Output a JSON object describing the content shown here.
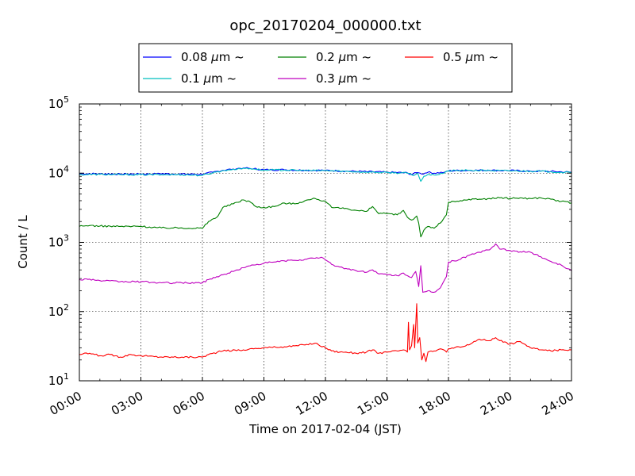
{
  "chart_data": {
    "type": "line",
    "title": "opc_20170204_000000.txt",
    "xlabel": "Time on 2017-02-04 (JST)",
    "ylabel": "Count / L",
    "y_scale": "log",
    "ylim": [
      10,
      100000
    ],
    "xlim": [
      0,
      24
    ],
    "x_unit": "hours",
    "x_tick_labels": [
      "00:00",
      "03:00",
      "06:00",
      "09:00",
      "12:00",
      "15:00",
      "18:00",
      "21:00",
      "24:00"
    ],
    "y_tick_labels": [
      {
        "base": "10",
        "exp": "1"
      },
      {
        "base": "10",
        "exp": "2"
      },
      {
        "base": "10",
        "exp": "3"
      },
      {
        "base": "10",
        "exp": "4"
      },
      {
        "base": "10",
        "exp": "5"
      }
    ],
    "grid": true,
    "legend": {
      "placement": "top",
      "ncol": 3,
      "unit": "μm",
      "suffix": "~"
    },
    "series": [
      {
        "name": "0.08",
        "color": "#0000ff",
        "points": [
          [
            0,
            9800
          ],
          [
            1,
            9800
          ],
          [
            2,
            9700
          ],
          [
            3,
            9700
          ],
          [
            4,
            9800
          ],
          [
            5,
            9700
          ],
          [
            6,
            9600
          ],
          [
            6.5,
            10300
          ],
          [
            7,
            11000
          ],
          [
            7.5,
            11500
          ],
          [
            8,
            11900
          ],
          [
            8.5,
            11600
          ],
          [
            9,
            11200
          ],
          [
            10,
            11200
          ],
          [
            11,
            11000
          ],
          [
            12,
            11000
          ],
          [
            13,
            10700
          ],
          [
            14,
            10500
          ],
          [
            15,
            10300
          ],
          [
            16,
            10100
          ],
          [
            16.2,
            9600
          ],
          [
            16.5,
            10200
          ],
          [
            16.7,
            9700
          ],
          [
            17,
            10300
          ],
          [
            17.3,
            10000
          ],
          [
            17.8,
            10300
          ],
          [
            18,
            10800
          ],
          [
            19,
            11000
          ],
          [
            20,
            11000
          ],
          [
            21,
            10900
          ],
          [
            22,
            10700
          ],
          [
            23,
            10600
          ],
          [
            24,
            10300
          ]
        ]
      },
      {
        "name": "0.1",
        "color": "#00bfbf",
        "points": [
          [
            0,
            9500
          ],
          [
            1,
            9600
          ],
          [
            2,
            9500
          ],
          [
            3,
            9500
          ],
          [
            4,
            9500
          ],
          [
            5,
            9500
          ],
          [
            6,
            9300
          ],
          [
            6.5,
            10100
          ],
          [
            7,
            10900
          ],
          [
            7.5,
            11400
          ],
          [
            8,
            11800
          ],
          [
            8.5,
            11500
          ],
          [
            9,
            11100
          ],
          [
            10,
            11100
          ],
          [
            11,
            10900
          ],
          [
            12,
            10900
          ],
          [
            13,
            10600
          ],
          [
            14,
            10400
          ],
          [
            15,
            10200
          ],
          [
            16,
            10000
          ],
          [
            16.3,
            9200
          ],
          [
            16.5,
            10000
          ],
          [
            16.65,
            7600
          ],
          [
            16.8,
            9000
          ],
          [
            17,
            9600
          ],
          [
            17.3,
            9400
          ],
          [
            17.8,
            10100
          ],
          [
            18,
            10800
          ],
          [
            19,
            11000
          ],
          [
            20,
            10900
          ],
          [
            21,
            10800
          ],
          [
            22,
            10700
          ],
          [
            23,
            10500
          ],
          [
            24,
            10100
          ]
        ]
      },
      {
        "name": "0.2",
        "color": "#008000",
        "points": [
          [
            0,
            1700
          ],
          [
            0.5,
            1750
          ],
          [
            1,
            1720
          ],
          [
            2,
            1700
          ],
          [
            3,
            1700
          ],
          [
            4,
            1620
          ],
          [
            5,
            1620
          ],
          [
            6,
            1600
          ],
          [
            6.3,
            2000
          ],
          [
            6.7,
            2300
          ],
          [
            7,
            3200
          ],
          [
            7.5,
            3600
          ],
          [
            8,
            4100
          ],
          [
            8.3,
            3900
          ],
          [
            8.6,
            3300
          ],
          [
            9,
            3200
          ],
          [
            9.5,
            3300
          ],
          [
            10,
            3700
          ],
          [
            10.5,
            3600
          ],
          [
            11,
            4000
          ],
          [
            11.5,
            4300
          ],
          [
            12,
            3900
          ],
          [
            12.3,
            3200
          ],
          [
            12.7,
            3100
          ],
          [
            13,
            3100
          ],
          [
            13.5,
            2900
          ],
          [
            14,
            2800
          ],
          [
            14.3,
            3300
          ],
          [
            14.6,
            2600
          ],
          [
            15,
            2600
          ],
          [
            15.5,
            2500
          ],
          [
            15.8,
            2900
          ],
          [
            16,
            2300
          ],
          [
            16.2,
            2100
          ],
          [
            16.45,
            2400
          ],
          [
            16.55,
            1900
          ],
          [
            16.65,
            1200
          ],
          [
            16.8,
            1500
          ],
          [
            17,
            1700
          ],
          [
            17.3,
            1600
          ],
          [
            17.6,
            1900
          ],
          [
            17.9,
            2500
          ],
          [
            18,
            3800
          ],
          [
            18.5,
            3900
          ],
          [
            19,
            4200
          ],
          [
            19.5,
            4200
          ],
          [
            20,
            4300
          ],
          [
            20.5,
            4400
          ],
          [
            21,
            4300
          ],
          [
            21.5,
            4400
          ],
          [
            22,
            4300
          ],
          [
            22.5,
            4400
          ],
          [
            23,
            4200
          ],
          [
            23.5,
            3900
          ],
          [
            24,
            3700
          ]
        ]
      },
      {
        "name": "0.3",
        "color": "#bf00bf",
        "points": [
          [
            0,
            290
          ],
          [
            0.5,
            295
          ],
          [
            1,
            280
          ],
          [
            2,
            270
          ],
          [
            3,
            270
          ],
          [
            4,
            260
          ],
          [
            5,
            260
          ],
          [
            6,
            260
          ],
          [
            6.3,
            290
          ],
          [
            6.7,
            320
          ],
          [
            7,
            340
          ],
          [
            7.5,
            380
          ],
          [
            8,
            430
          ],
          [
            8.5,
            470
          ],
          [
            9,
            500
          ],
          [
            9.5,
            520
          ],
          [
            10,
            540
          ],
          [
            10.5,
            550
          ],
          [
            11,
            570
          ],
          [
            11.5,
            590
          ],
          [
            11.8,
            610
          ],
          [
            12,
            560
          ],
          [
            12.3,
            480
          ],
          [
            12.7,
            440
          ],
          [
            13,
            420
          ],
          [
            13.5,
            390
          ],
          [
            14,
            370
          ],
          [
            14.3,
            400
          ],
          [
            14.6,
            350
          ],
          [
            15,
            340
          ],
          [
            15.5,
            330
          ],
          [
            15.8,
            360
          ],
          [
            16,
            330
          ],
          [
            16.2,
            310
          ],
          [
            16.4,
            380
          ],
          [
            16.55,
            230
          ],
          [
            16.65,
            460
          ],
          [
            16.75,
            190
          ],
          [
            17,
            200
          ],
          [
            17.3,
            190
          ],
          [
            17.6,
            220
          ],
          [
            17.9,
            320
          ],
          [
            18,
            520
          ],
          [
            18.5,
            560
          ],
          [
            19,
            650
          ],
          [
            19.5,
            720
          ],
          [
            20,
            780
          ],
          [
            20.3,
            950
          ],
          [
            20.5,
            800
          ],
          [
            21,
            760
          ],
          [
            21.5,
            730
          ],
          [
            22,
            720
          ],
          [
            22.5,
            620
          ],
          [
            23,
            530
          ],
          [
            23.5,
            470
          ],
          [
            24,
            390
          ]
        ]
      },
      {
        "name": "0.5",
        "color": "#ff0000",
        "points": [
          [
            0,
            24
          ],
          [
            0.5,
            25
          ],
          [
            1,
            23
          ],
          [
            1.5,
            24
          ],
          [
            2,
            22
          ],
          [
            2.5,
            24
          ],
          [
            3,
            23
          ],
          [
            4,
            22
          ],
          [
            5,
            22
          ],
          [
            5.5,
            22
          ],
          [
            6,
            22
          ],
          [
            6.3,
            24
          ],
          [
            7,
            27
          ],
          [
            8,
            28
          ],
          [
            8.5,
            29
          ],
          [
            9,
            30
          ],
          [
            10,
            31
          ],
          [
            10.5,
            32
          ],
          [
            11,
            33
          ],
          [
            11.5,
            35
          ],
          [
            12,
            30
          ],
          [
            12.3,
            27
          ],
          [
            12.7,
            26
          ],
          [
            13,
            26
          ],
          [
            13.5,
            25
          ],
          [
            14,
            26
          ],
          [
            14.3,
            28
          ],
          [
            14.6,
            25
          ],
          [
            15,
            26
          ],
          [
            15.5,
            27
          ],
          [
            15.8,
            28
          ],
          [
            16,
            26
          ],
          [
            16.05,
            70
          ],
          [
            16.1,
            28
          ],
          [
            16.2,
            32
          ],
          [
            16.3,
            65
          ],
          [
            16.35,
            30
          ],
          [
            16.45,
            130
          ],
          [
            16.5,
            35
          ],
          [
            16.6,
            42
          ],
          [
            16.7,
            20
          ],
          [
            16.8,
            25
          ],
          [
            16.9,
            19
          ],
          [
            17,
            26
          ],
          [
            17.3,
            27
          ],
          [
            17.6,
            29
          ],
          [
            17.9,
            26
          ],
          [
            18,
            29
          ],
          [
            18.5,
            31
          ],
          [
            19,
            33
          ],
          [
            19.5,
            40
          ],
          [
            20,
            38
          ],
          [
            20.3,
            42
          ],
          [
            20.5,
            38
          ],
          [
            21,
            34
          ],
          [
            21.5,
            37
          ],
          [
            22,
            30
          ],
          [
            22.5,
            28
          ],
          [
            23,
            27
          ],
          [
            23.5,
            28
          ],
          [
            24,
            28
          ]
        ]
      }
    ]
  }
}
